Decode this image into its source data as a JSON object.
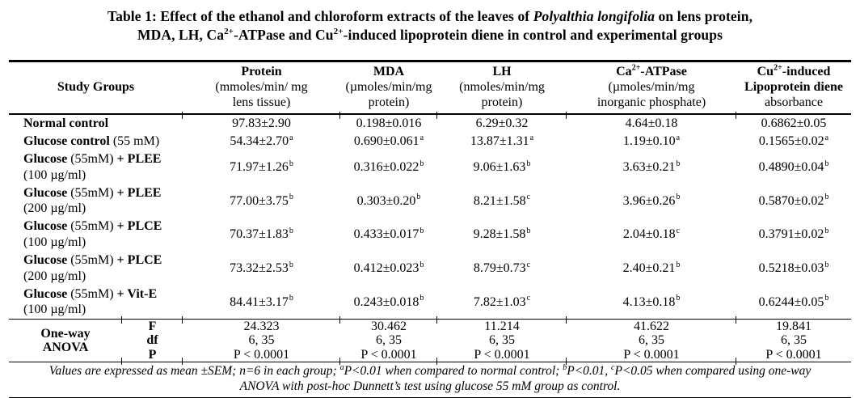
{
  "title": {
    "lines": [
      [
        {
          "t": "Table 1: Effect of the ethanol and chloroform extracts of the leaves of ",
          "b": true
        },
        {
          "t": "Polyalthia longifolia",
          "b": true,
          "i": true
        },
        {
          "t": " on lens protein,",
          "b": true
        }
      ],
      [
        {
          "t": "MDA, LH, Ca",
          "b": true
        },
        {
          "t": "2+",
          "b": true,
          "sup": true
        },
        {
          "t": "-ATPase and Cu",
          "b": true
        },
        {
          "t": "2+",
          "b": true,
          "sup": true
        },
        {
          "t": "-induced lipoprotein diene in control and experimental groups",
          "b": true
        }
      ]
    ]
  },
  "table": {
    "columns": [
      {
        "id": "study-groups",
        "lines": [
          [
            {
              "t": "Study Groups",
              "b": true
            }
          ]
        ]
      },
      {
        "id": "protein",
        "lines": [
          [
            {
              "t": "Protein",
              "b": true
            }
          ],
          [
            {
              "t": "(mmoles/min/ mg"
            }
          ],
          [
            {
              "t": "lens tissue)"
            }
          ]
        ]
      },
      {
        "id": "mda",
        "lines": [
          [
            {
              "t": "MDA",
              "b": true
            }
          ],
          [
            {
              "t": "(µmoles/min/mg"
            }
          ],
          [
            {
              "t": "protein)"
            }
          ]
        ]
      },
      {
        "id": "lh",
        "lines": [
          [
            {
              "t": "LH",
              "b": true
            }
          ],
          [
            {
              "t": "(nmoles/min/mg"
            }
          ],
          [
            {
              "t": "protein)"
            }
          ]
        ]
      },
      {
        "id": "ca-atpase",
        "lines": [
          [
            {
              "t": "Ca",
              "b": true
            },
            {
              "t": "2+",
              "b": true,
              "sup": true
            },
            {
              "t": "-ATPase",
              "b": true
            }
          ],
          [
            {
              "t": "(µmoles/min/mg"
            }
          ],
          [
            {
              "t": "inorganic phosphate)"
            }
          ]
        ]
      },
      {
        "id": "cu-induced",
        "lines": [
          [
            {
              "t": "Cu",
              "b": true
            },
            {
              "t": "2+",
              "b": true,
              "sup": true
            },
            {
              "t": "-induced",
              "b": true
            }
          ],
          [
            {
              "t": "Lipoprotein diene",
              "b": true
            }
          ],
          [
            {
              "t": "absorbance"
            }
          ]
        ]
      }
    ],
    "rows": [
      {
        "id": "normal-control",
        "label_lines": [
          [
            {
              "t": "Normal control",
              "b": true
            }
          ]
        ],
        "values": [
          {
            "v": "97.83±2.90"
          },
          {
            "v": "0.198±0.016"
          },
          {
            "v": "6.29±0.32"
          },
          {
            "v": "4.64±0.18"
          },
          {
            "v": "0.6862±0.05"
          }
        ]
      },
      {
        "id": "glucose-control",
        "label_lines": [
          [
            {
              "t": "Glucose control ",
              "b": true
            },
            {
              "t": "(55 mM)"
            }
          ]
        ],
        "values": [
          {
            "v": "54.34±2.70",
            "sup": "a"
          },
          {
            "v": "0.690±0.061",
            "sup": "a"
          },
          {
            "v": "13.87±1.31",
            "sup": "a"
          },
          {
            "v": "1.19±0.10",
            "sup": "a"
          },
          {
            "v": "0.1565±0.02",
            "sup": "a"
          }
        ]
      },
      {
        "id": "glucose-plee-100",
        "label_lines": [
          [
            {
              "t": "Glucose ",
              "b": true
            },
            {
              "t": "(55mM)"
            },
            {
              "t": " + PLEE",
              "b": true
            }
          ],
          [
            {
              "t": "(100 µg/ml)"
            }
          ]
        ],
        "values": [
          {
            "v": "71.97±1.26",
            "sup": "b"
          },
          {
            "v": "0.316±0.022",
            "sup": "b"
          },
          {
            "v": "9.06±1.63",
            "sup": "b"
          },
          {
            "v": "3.63±0.21",
            "sup": "b"
          },
          {
            "v": "0.4890±0.04",
            "sup": "b"
          }
        ]
      },
      {
        "id": "glucose-plee-200",
        "label_lines": [
          [
            {
              "t": "Glucose ",
              "b": true
            },
            {
              "t": "(55mM)"
            },
            {
              "t": " + PLEE",
              "b": true
            }
          ],
          [
            {
              "t": "(200 µg/ml)"
            }
          ]
        ],
        "values": [
          {
            "v": "77.00±3.75",
            "sup": "b"
          },
          {
            "v": "0.303±0.20",
            "sup": "b"
          },
          {
            "v": "8.21±1.58",
            "sup": "c"
          },
          {
            "v": "3.96±0.26",
            "sup": "b"
          },
          {
            "v": "0.5870±0.02",
            "sup": "b"
          }
        ]
      },
      {
        "id": "glucose-plce-100",
        "label_lines": [
          [
            {
              "t": "Glucose ",
              "b": true
            },
            {
              "t": "(55mM)"
            },
            {
              "t": " + PLCE",
              "b": true
            }
          ],
          [
            {
              "t": "(100 µg/ml)"
            }
          ]
        ],
        "values": [
          {
            "v": "70.37±1.83",
            "sup": "b"
          },
          {
            "v": "0.433±0.017",
            "sup": "b"
          },
          {
            "v": "9.28±1.58",
            "sup": "b"
          },
          {
            "v": "2.04±0.18",
            "sup": "c"
          },
          {
            "v": "0.3791±0.02",
            "sup": "b"
          }
        ]
      },
      {
        "id": "glucose-plce-200",
        "label_lines": [
          [
            {
              "t": "Glucose ",
              "b": true
            },
            {
              "t": "(55mM)"
            },
            {
              "t": " + PLCE",
              "b": true
            }
          ],
          [
            {
              "t": "(200 µg/ml)"
            }
          ]
        ],
        "values": [
          {
            "v": "73.32±2.53",
            "sup": "b"
          },
          {
            "v": "0.412±0.023",
            "sup": "b"
          },
          {
            "v": "8.79±0.73",
            "sup": "c"
          },
          {
            "v": "2.40±0.21",
            "sup": "b"
          },
          {
            "v": "0.5218±0.03",
            "sup": "b"
          }
        ]
      },
      {
        "id": "glucose-vite-100",
        "label_lines": [
          [
            {
              "t": "Glucose ",
              "b": true
            },
            {
              "t": "(55mM)"
            },
            {
              "t": " + Vit-E",
              "b": true
            }
          ],
          [
            {
              "t": "(100 µg/ml)"
            }
          ]
        ],
        "values": [
          {
            "v": "84.41±3.17",
            "sup": "b"
          },
          {
            "v": "0.243±0.018",
            "sup": "b"
          },
          {
            "v": "7.82±1.03",
            "sup": "c"
          },
          {
            "v": "4.13±0.18",
            "sup": "b"
          },
          {
            "v": "0.6244±0.05",
            "sup": "b"
          }
        ]
      }
    ],
    "anova": {
      "label_lines": [
        "One-way",
        "ANOVA"
      ],
      "stats": [
        {
          "name": "F",
          "values": [
            "24.323",
            "30.462",
            "11.214",
            "41.622",
            "19.841"
          ]
        },
        {
          "name": "df",
          "values": [
            "6, 35",
            "6, 35",
            "6, 35",
            "6, 35",
            "6, 35"
          ]
        },
        {
          "name": "P",
          "values": [
            "P < 0.0001",
            "P < 0.0001",
            "P < 0.0001",
            "P < 0.0001",
            "P < 0.0001"
          ]
        }
      ]
    }
  },
  "footnote": {
    "lines": [
      [
        {
          "t": "Values are expressed as mean ±SEM; n=6 in each group; ",
          "i": true
        },
        {
          "t": "a",
          "i": true,
          "sup": true
        },
        {
          "t": "P<0.01 when compared to normal control; ",
          "i": true
        },
        {
          "t": "b",
          "i": true,
          "sup": true
        },
        {
          "t": "P<0.01, ",
          "i": true
        },
        {
          "t": "c",
          "i": true,
          "sup": true
        },
        {
          "t": "P<0.05 when compared using one-way",
          "i": true
        }
      ],
      [
        {
          "t": "ANOVA with post-hoc Dunnett’s test using glucose 55 mM group as control.",
          "i": true
        }
      ]
    ]
  }
}
